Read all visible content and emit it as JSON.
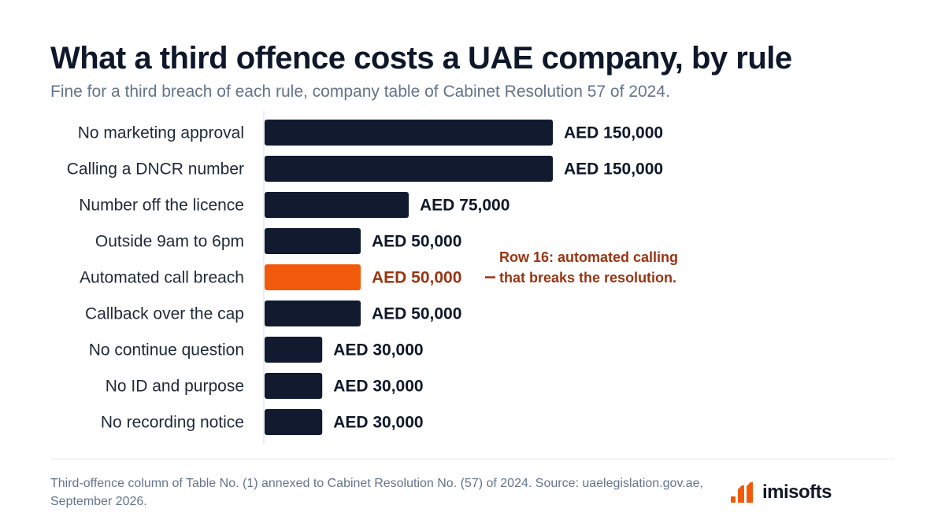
{
  "title": "What a third offence costs a UAE company, by rule",
  "subtitle": "Fine for a third breach of each rule, company table of Cabinet Resolution 57 of 2024.",
  "chart_data": {
    "type": "bar",
    "orientation": "horizontal",
    "categories": [
      "No marketing approval",
      "Calling a DNCR number",
      "Number off the licence",
      "Outside 9am to 6pm",
      "Automated call breach",
      "Callback over the cap",
      "No continue question",
      "No ID and purpose",
      "No recording notice"
    ],
    "values": [
      150000,
      150000,
      75000,
      50000,
      50000,
      50000,
      30000,
      30000,
      30000
    ],
    "value_labels": [
      "AED 150,000",
      "AED 150,000",
      "AED 75,000",
      "AED 50,000",
      "AED 50,000",
      "AED 50,000",
      "AED 30,000",
      "AED 30,000",
      "AED 30,000"
    ],
    "highlight_index": 4,
    "annotation": {
      "category": "Automated call breach",
      "lines": [
        "Row 16: automated calling",
        "that breaks the resolution."
      ]
    },
    "xlim": [
      0,
      150000
    ],
    "grid": false,
    "legend": "none",
    "colors": {
      "bar": "#111a2e",
      "highlight": "#f15a0a",
      "annotation": "#9a3412",
      "axis": "#e2e8f0"
    }
  },
  "footer": {
    "note": "Third-offence column of Table No. (1) annexed to Cabinet Resolution No. (57) of 2024. Source: uaelegislation.gov.ae, September 2026."
  },
  "logo": {
    "text": "imisofts",
    "icon": "imisofts-logo-mark-icon",
    "color": "#f15a0a"
  }
}
